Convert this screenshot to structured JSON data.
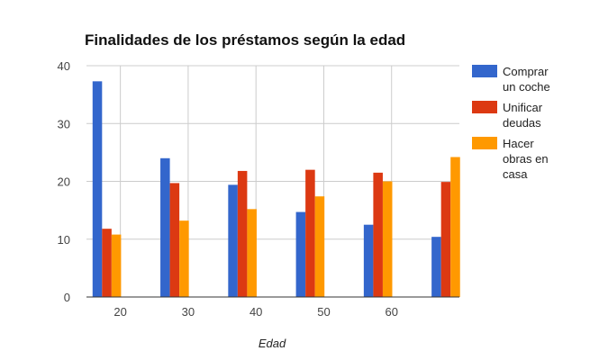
{
  "chart_data": {
    "type": "bar",
    "title": "Finalidades de los préstamos según la edad",
    "xlabel": "Edad",
    "ylabel": "",
    "ylim": [
      0,
      40
    ],
    "yticks": [
      "0",
      "10",
      "20",
      "30",
      "40"
    ],
    "xlim": [
      15,
      70
    ],
    "xticks": [
      "20",
      "30",
      "40",
      "50",
      "60"
    ],
    "grid": true,
    "legend_position": "right",
    "x": [
      18,
      28,
      38,
      48,
      58,
      68
    ],
    "series": [
      {
        "name": "Comprar un coche",
        "color": "#3366cc",
        "values": [
          37.3,
          24,
          19.4,
          14.7,
          12.5,
          10.4
        ]
      },
      {
        "name": "Unificar deudas",
        "color": "#dc3912",
        "values": [
          11.8,
          19.7,
          21.8,
          22,
          21.5,
          19.9
        ]
      },
      {
        "name": "Hacer obras en casa",
        "color": "#ff9900",
        "values": [
          10.8,
          13.2,
          15.2,
          17.4,
          20,
          24.2
        ]
      }
    ]
  }
}
